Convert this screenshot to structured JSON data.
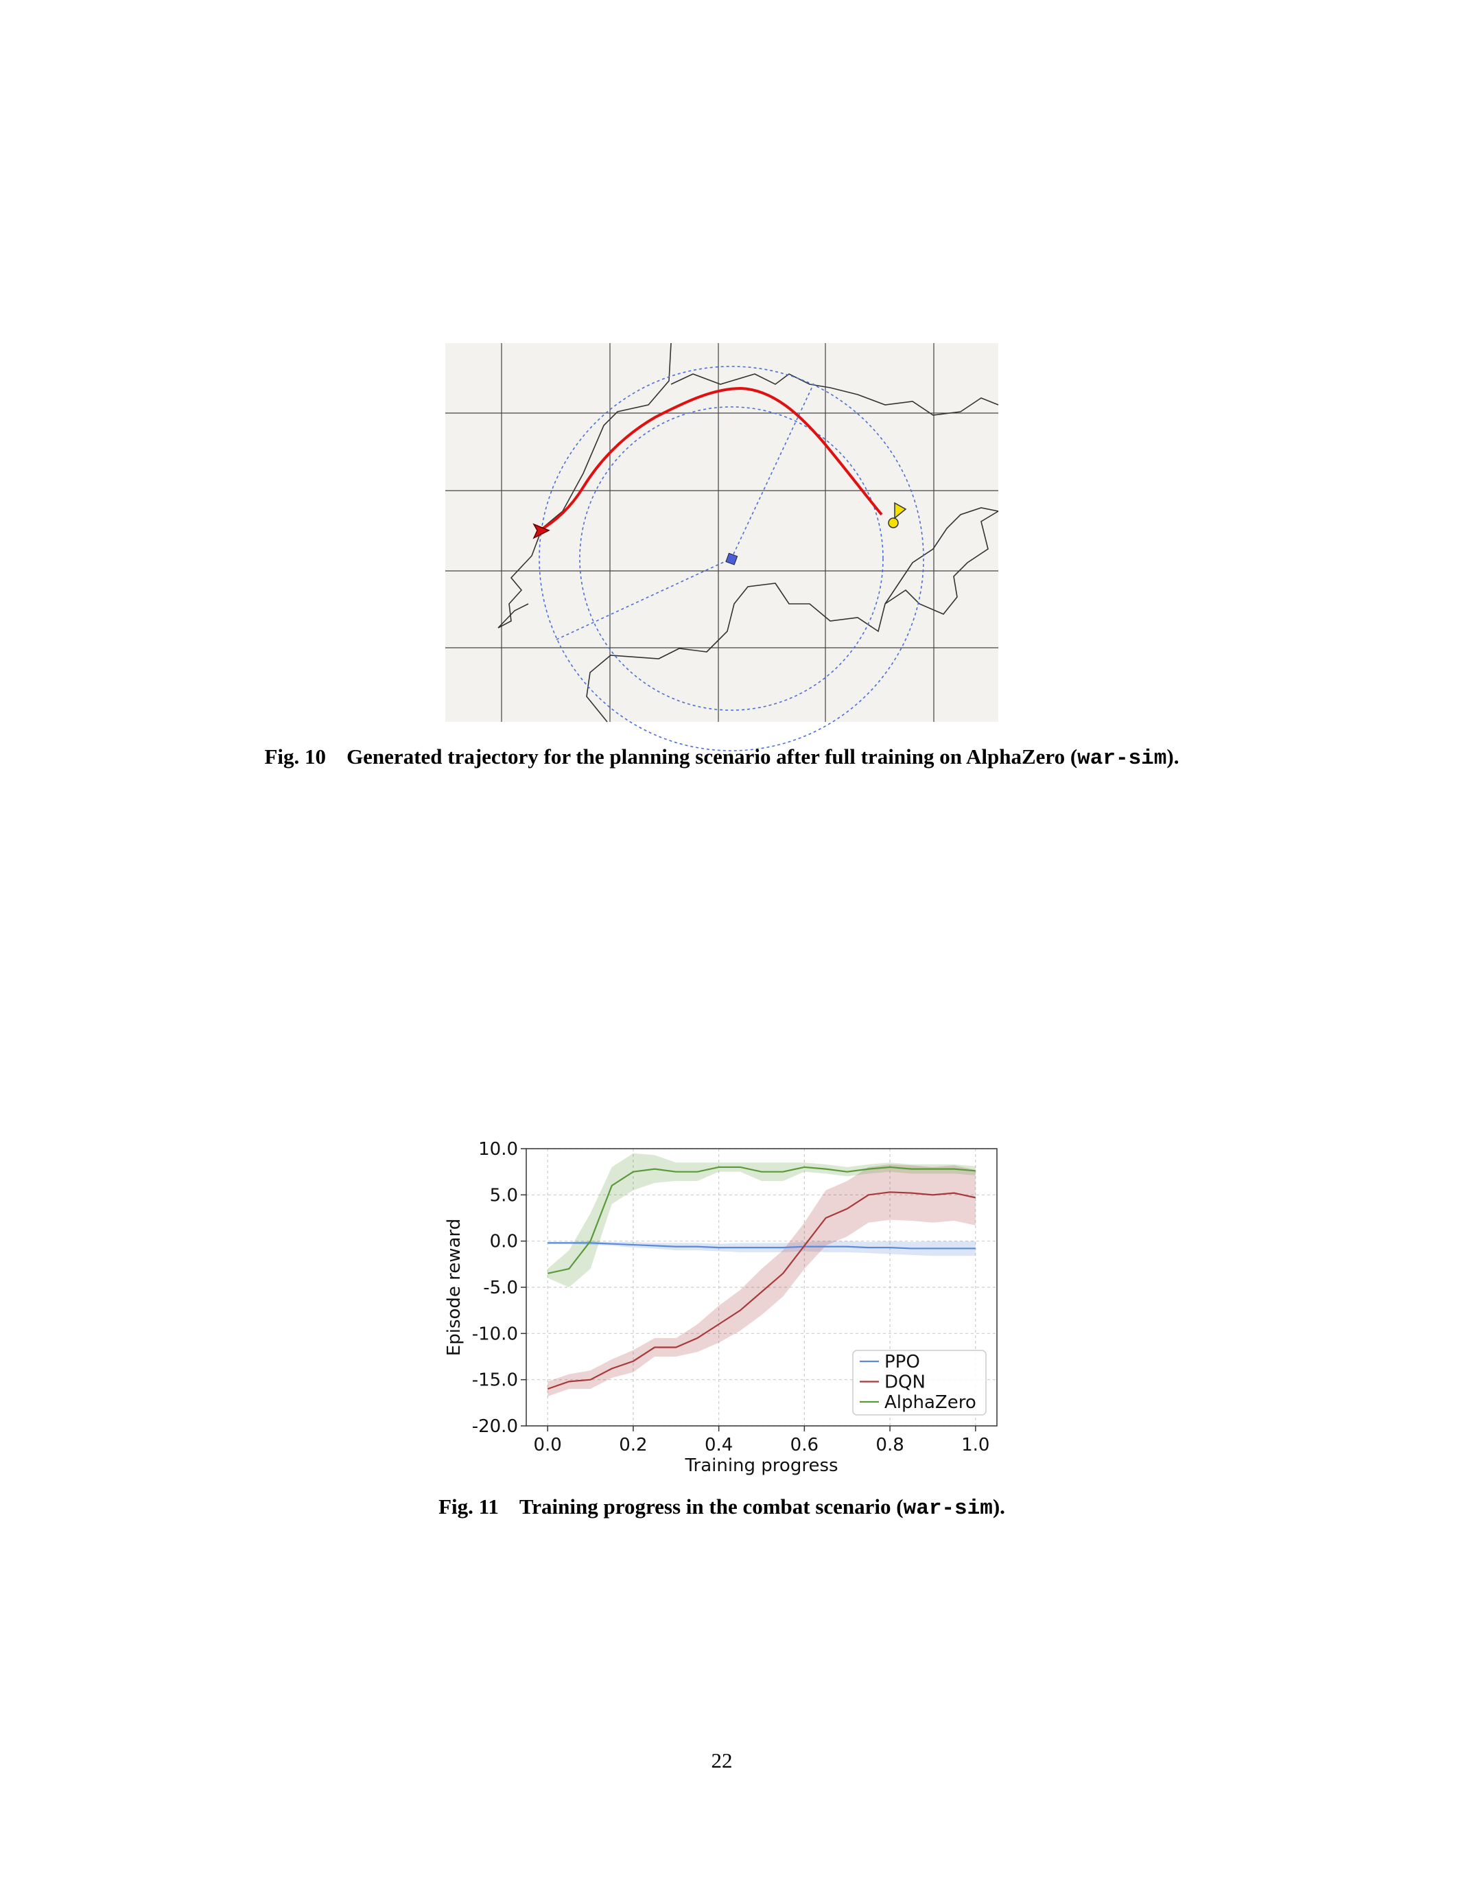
{
  "figures": [
    {
      "label": "Fig. 10",
      "caption": [
        "Generated trajectory for the planning scenario after full training on AlphaZero (",
        "war-sim",
        ")."
      ]
    },
    {
      "label": "Fig. 11",
      "caption": [
        "Training progress in the combat scenario (",
        "war-sim",
        ")."
      ]
    }
  ],
  "chart_data": {
    "type": "line",
    "x": [
      0,
      0.05,
      0.1,
      0.15,
      0.2,
      0.25,
      0.3,
      0.35,
      0.4,
      0.45,
      0.5,
      0.55,
      0.6,
      0.65,
      0.7,
      0.75,
      0.8,
      0.85,
      0.9,
      0.95,
      1.0
    ],
    "series": [
      {
        "name": "PPO",
        "color": "#5b8ad8",
        "values": [
          -0.2,
          -0.2,
          -0.2,
          -0.3,
          -0.4,
          -0.5,
          -0.6,
          -0.6,
          -0.7,
          -0.7,
          -0.7,
          -0.7,
          -0.6,
          -0.6,
          -0.6,
          -0.7,
          -0.7,
          -0.8,
          -0.8,
          -0.8,
          -0.8
        ],
        "std": [
          0.1,
          0.1,
          0.2,
          0.2,
          0.3,
          0.3,
          0.4,
          0.4,
          0.4,
          0.5,
          0.5,
          0.5,
          0.5,
          0.6,
          0.6,
          0.6,
          0.7,
          0.7,
          0.8,
          0.8,
          0.8
        ]
      },
      {
        "name": "DQN",
        "color": "#a83a3a",
        "values": [
          -16,
          -15.2,
          -15,
          -13.8,
          -13,
          -11.5,
          -11.5,
          -10.5,
          -9,
          -7.5,
          -5.5,
          -3.5,
          -0.5,
          2.5,
          3.5,
          5,
          5.3,
          5.2,
          5,
          5.2,
          4.7
        ],
        "std": [
          0.8,
          0.8,
          1,
          1,
          1.2,
          1,
          1,
          1.5,
          2,
          2.2,
          2.5,
          2.5,
          2.5,
          3,
          3,
          3,
          3,
          3,
          3,
          3,
          3
        ]
      },
      {
        "name": "AlphaZero",
        "color": "#5a9a3a",
        "values": [
          -3.5,
          -3,
          0,
          6,
          7.5,
          7.8,
          7.5,
          7.5,
          8,
          8,
          7.5,
          7.5,
          8,
          7.8,
          7.5,
          7.8,
          8,
          7.8,
          7.8,
          7.8,
          7.6
        ],
        "std": [
          0.5,
          2,
          3,
          2,
          2,
          1.5,
          1,
          1,
          0.5,
          0.5,
          1,
          1,
          0.5,
          0.5,
          0.5,
          0.5,
          0.5,
          0.5,
          0.5,
          0.5,
          0.5
        ]
      }
    ],
    "xlabel": "Training progress",
    "ylabel": "Episode reward",
    "xlim": [
      -0.05,
      1.05
    ],
    "ylim": [
      -20,
      10
    ],
    "xticks": [
      {
        "value": 0,
        "label": "0.0"
      },
      {
        "value": 0.2,
        "label": "0.2"
      },
      {
        "value": 0.4,
        "label": "0.4"
      },
      {
        "value": 0.6,
        "label": "0.6"
      },
      {
        "value": 0.8,
        "label": "0.8"
      },
      {
        "value": 1.0,
        "label": "1.0"
      }
    ],
    "yticks": [
      {
        "value": -20,
        "label": "-20.0"
      },
      {
        "value": -15,
        "label": "-15.0"
      },
      {
        "value": -10,
        "label": "-10.0"
      },
      {
        "value": -5,
        "label": "-5.0"
      },
      {
        "value": 0,
        "label": "0.0"
      },
      {
        "value": 5,
        "label": "5.0"
      },
      {
        "value": 10,
        "label": "10.0"
      }
    ],
    "grid": true,
    "legend": "lower right"
  },
  "page_number": "22"
}
